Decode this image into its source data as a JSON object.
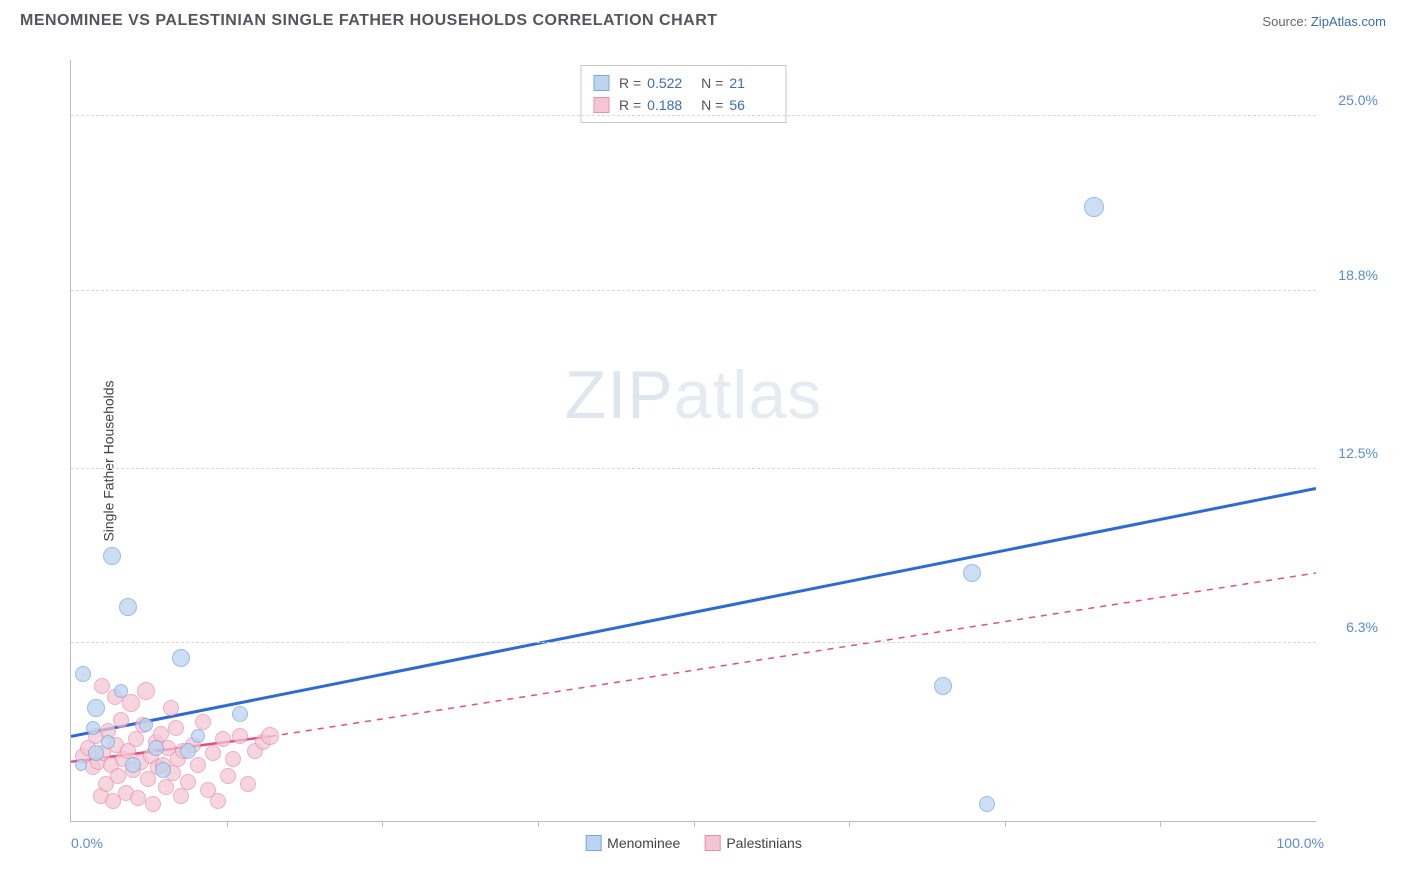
{
  "title": "MENOMINEE VS PALESTINIAN SINGLE FATHER HOUSEHOLDS CORRELATION CHART",
  "source_label": "Source:",
  "source_name": "ZipAtlas.com",
  "ylabel": "Single Father Households",
  "watermark_bold": "ZIP",
  "watermark_thin": "atlas",
  "chart": {
    "type": "scatter",
    "background_color": "#ffffff",
    "grid_color": "#d8d8d8",
    "axis_color": "#bbbbbb",
    "tick_label_color": "#5b8bd4",
    "xlim": [
      0,
      100
    ],
    "ylim": [
      0,
      27
    ],
    "yticks": [
      {
        "v": 6.3,
        "label": "6.3%"
      },
      {
        "v": 12.5,
        "label": "12.5%"
      },
      {
        "v": 18.8,
        "label": "18.8%"
      },
      {
        "v": 25.0,
        "label": "25.0%"
      }
    ],
    "xtick_left": "0.0%",
    "xtick_right": "100.0%",
    "xtick_marks": [
      12.5,
      25,
      37.5,
      50,
      62.5,
      75,
      87.5
    ],
    "series": [
      {
        "name": "Menominee",
        "marker_fill": "#bcd4ef",
        "marker_stroke": "#7ca8dd",
        "marker_opacity": 0.75,
        "marker_radius": 9,
        "line_color": "#2e6bd1",
        "line_width": 3,
        "line_dash": "none",
        "R": "0.522",
        "N": "21",
        "trend": {
          "x1": 0,
          "y1": 3.0,
          "x2": 100,
          "y2": 11.8
        },
        "points": [
          {
            "x": 1.0,
            "y": 5.2,
            "r": 8
          },
          {
            "x": 2.0,
            "y": 4.0,
            "r": 9
          },
          {
            "x": 2.0,
            "y": 2.4,
            "r": 8
          },
          {
            "x": 3.3,
            "y": 9.4,
            "r": 9
          },
          {
            "x": 4.6,
            "y": 7.6,
            "r": 9
          },
          {
            "x": 5.0,
            "y": 2.0,
            "r": 8
          },
          {
            "x": 6.8,
            "y": 2.6,
            "r": 8
          },
          {
            "x": 7.4,
            "y": 1.8,
            "r": 8
          },
          {
            "x": 8.8,
            "y": 5.8,
            "r": 9
          },
          {
            "x": 9.4,
            "y": 2.5,
            "r": 8
          },
          {
            "x": 10.2,
            "y": 3.0,
            "r": 7
          },
          {
            "x": 13.6,
            "y": 3.8,
            "r": 8
          },
          {
            "x": 70.0,
            "y": 4.8,
            "r": 9
          },
          {
            "x": 72.4,
            "y": 8.8,
            "r": 9
          },
          {
            "x": 73.6,
            "y": 0.6,
            "r": 8
          },
          {
            "x": 82.2,
            "y": 21.8,
            "r": 10
          },
          {
            "x": 1.8,
            "y": 3.3,
            "r": 7
          },
          {
            "x": 3.0,
            "y": 2.8,
            "r": 7
          },
          {
            "x": 4.0,
            "y": 4.6,
            "r": 7
          },
          {
            "x": 6.0,
            "y": 3.4,
            "r": 7
          },
          {
            "x": 0.8,
            "y": 2.0,
            "r": 6
          }
        ]
      },
      {
        "name": "Palestinians",
        "marker_fill": "#f4c6d4",
        "marker_stroke": "#e88fb0",
        "marker_opacity": 0.72,
        "marker_radius": 9,
        "line_color": "#e24f87",
        "line_width": 2.5,
        "line_dash": "6,6",
        "R": "0.188",
        "N": "56",
        "trend_solid": {
          "x1": 0,
          "y1": 2.1,
          "x2": 16,
          "y2": 3.0
        },
        "trend": {
          "x1": 16,
          "y1": 3.0,
          "x2": 100,
          "y2": 8.8
        },
        "points": [
          {
            "x": 1.0,
            "y": 2.3,
            "r": 8
          },
          {
            "x": 1.4,
            "y": 2.6,
            "r": 8
          },
          {
            "x": 1.8,
            "y": 1.9,
            "r": 8
          },
          {
            "x": 2.0,
            "y": 3.0,
            "r": 8
          },
          {
            "x": 2.2,
            "y": 2.1,
            "r": 8
          },
          {
            "x": 2.4,
            "y": 0.9,
            "r": 8
          },
          {
            "x": 2.6,
            "y": 2.4,
            "r": 8
          },
          {
            "x": 2.8,
            "y": 1.3,
            "r": 8
          },
          {
            "x": 3.0,
            "y": 3.2,
            "r": 8
          },
          {
            "x": 3.2,
            "y": 2.0,
            "r": 8
          },
          {
            "x": 3.4,
            "y": 0.7,
            "r": 8
          },
          {
            "x": 3.6,
            "y": 2.7,
            "r": 8
          },
          {
            "x": 3.8,
            "y": 1.6,
            "r": 8
          },
          {
            "x": 4.0,
            "y": 3.6,
            "r": 8
          },
          {
            "x": 4.2,
            "y": 2.2,
            "r": 8
          },
          {
            "x": 4.4,
            "y": 1.0,
            "r": 8
          },
          {
            "x": 4.6,
            "y": 2.5,
            "r": 8
          },
          {
            "x": 4.8,
            "y": 4.2,
            "r": 9
          },
          {
            "x": 5.0,
            "y": 1.8,
            "r": 8
          },
          {
            "x": 5.2,
            "y": 2.9,
            "r": 8
          },
          {
            "x": 5.4,
            "y": 0.8,
            "r": 8
          },
          {
            "x": 5.6,
            "y": 2.1,
            "r": 8
          },
          {
            "x": 5.8,
            "y": 3.4,
            "r": 8
          },
          {
            "x": 6.0,
            "y": 4.6,
            "r": 9
          },
          {
            "x": 6.2,
            "y": 1.5,
            "r": 8
          },
          {
            "x": 6.4,
            "y": 2.3,
            "r": 8
          },
          {
            "x": 6.6,
            "y": 0.6,
            "r": 8
          },
          {
            "x": 6.8,
            "y": 2.8,
            "r": 8
          },
          {
            "x": 7.0,
            "y": 1.9,
            "r": 8
          },
          {
            "x": 7.2,
            "y": 3.1,
            "r": 8
          },
          {
            "x": 7.4,
            "y": 2.0,
            "r": 8
          },
          {
            "x": 7.6,
            "y": 1.2,
            "r": 8
          },
          {
            "x": 7.8,
            "y": 2.6,
            "r": 8
          },
          {
            "x": 8.0,
            "y": 4.0,
            "r": 8
          },
          {
            "x": 8.2,
            "y": 1.7,
            "r": 8
          },
          {
            "x": 8.4,
            "y": 3.3,
            "r": 8
          },
          {
            "x": 8.6,
            "y": 2.2,
            "r": 8
          },
          {
            "x": 8.8,
            "y": 0.9,
            "r": 8
          },
          {
            "x": 9.0,
            "y": 2.5,
            "r": 8
          },
          {
            "x": 9.4,
            "y": 1.4,
            "r": 8
          },
          {
            "x": 9.8,
            "y": 2.7,
            "r": 8
          },
          {
            "x": 10.2,
            "y": 2.0,
            "r": 8
          },
          {
            "x": 10.6,
            "y": 3.5,
            "r": 8
          },
          {
            "x": 11.0,
            "y": 1.1,
            "r": 8
          },
          {
            "x": 11.4,
            "y": 2.4,
            "r": 8
          },
          {
            "x": 11.8,
            "y": 0.7,
            "r": 8
          },
          {
            "x": 12.2,
            "y": 2.9,
            "r": 8
          },
          {
            "x": 12.6,
            "y": 1.6,
            "r": 8
          },
          {
            "x": 13.0,
            "y": 2.2,
            "r": 8
          },
          {
            "x": 13.6,
            "y": 3.0,
            "r": 8
          },
          {
            "x": 14.2,
            "y": 1.3,
            "r": 8
          },
          {
            "x": 14.8,
            "y": 2.5,
            "r": 8
          },
          {
            "x": 15.4,
            "y": 2.8,
            "r": 8
          },
          {
            "x": 16.0,
            "y": 3.0,
            "r": 9
          },
          {
            "x": 2.5,
            "y": 4.8,
            "r": 8
          },
          {
            "x": 3.5,
            "y": 4.4,
            "r": 8
          }
        ]
      }
    ]
  },
  "legend_top": {
    "r_label": "R =",
    "n_label": "N ="
  },
  "legend_bottom": [
    {
      "label": "Menominee",
      "fill": "#bcd4ef",
      "stroke": "#7ca8dd"
    },
    {
      "label": "Palestinians",
      "fill": "#f4c6d4",
      "stroke": "#e88fb0"
    }
  ]
}
